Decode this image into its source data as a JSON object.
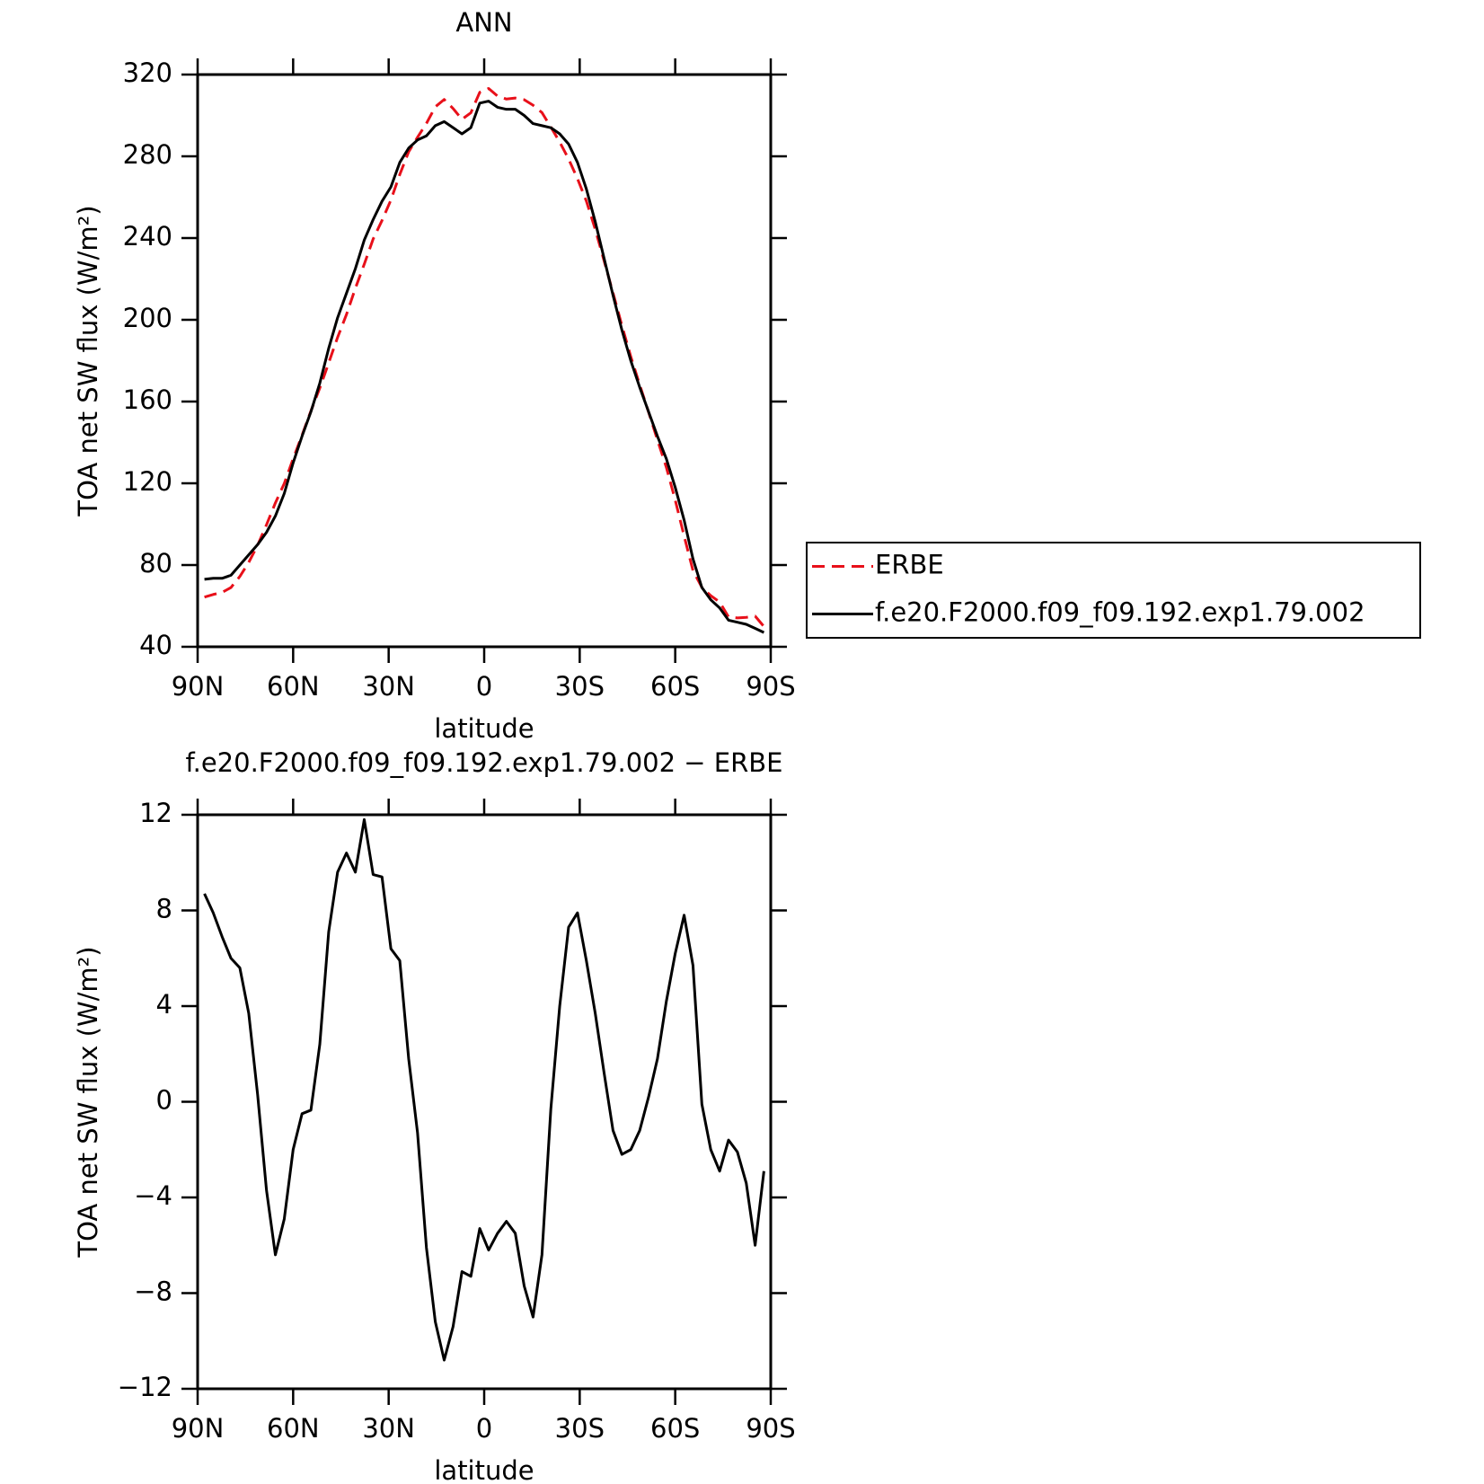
{
  "chart_data": [
    {
      "type": "line",
      "title": "ANN",
      "xlabel": "latitude",
      "ylabel": "TOA net SW flux (W/m²)",
      "x": [
        87.86,
        85.1,
        82.31,
        79.53,
        76.74,
        73.95,
        71.16,
        68.37,
        65.58,
        62.79,
        60.0,
        57.21,
        54.42,
        51.63,
        48.84,
        46.04,
        43.25,
        40.46,
        37.67,
        34.88,
        32.09,
        29.3,
        26.51,
        23.72,
        20.93,
        18.14,
        15.35,
        12.56,
        9.77,
        6.98,
        4.19,
        1.4,
        -1.4,
        -4.19,
        -6.98,
        -9.77,
        -12.56,
        -15.35,
        -18.14,
        -20.93,
        -23.72,
        -26.51,
        -29.3,
        -32.09,
        -34.88,
        -37.67,
        -40.46,
        -43.25,
        -46.04,
        -48.84,
        -51.63,
        -54.42,
        -57.21,
        -60.0,
        -62.79,
        -65.58,
        -68.37,
        -71.16,
        -73.95,
        -76.74,
        -79.53,
        -82.31,
        -85.1,
        -87.86
      ],
      "series": [
        {
          "name": "ERBE",
          "color": "#e8101a",
          "linestyle": "dashed",
          "values": [
            64.3,
            65.6,
            66.6,
            69.0,
            74.4,
            81.3,
            89.7,
            99.7,
            110.4,
            119.9,
            132.0,
            143.5,
            155.4,
            166.6,
            178.9,
            191.4,
            202.6,
            215.4,
            227.2,
            239.5,
            248.6,
            258.6,
            271.1,
            282.2,
            289.3,
            296.1,
            304.2,
            307.8,
            303.4,
            298.1,
            301.3,
            311.3,
            313.2,
            309.5,
            308.0,
            308.5,
            307.7,
            305.0,
            301.4,
            294.3,
            287.0,
            278.7,
            269.1,
            258.1,
            244.3,
            228.8,
            213.2,
            197.2,
            182.0,
            168.2,
            154.8,
            141.2,
            127.8,
            111.8,
            94.2,
            77.3,
            69.1,
            65.0,
            61.9,
            54.6,
            54.1,
            54.4,
            55.0,
            49.9
          ]
        },
        {
          "name": "f.e20.F2000.f09_f09.192.exp1.79.002",
          "color": "#000000",
          "linestyle": "solid",
          "values": [
            73,
            73.5,
            73.5,
            75,
            80,
            85,
            90,
            96,
            104,
            115,
            130,
            143,
            155,
            169,
            186,
            201,
            213,
            225,
            239,
            249,
            258,
            265,
            277,
            284,
            288,
            290,
            295,
            297,
            294,
            291,
            294,
            306,
            307,
            304,
            303,
            303,
            300,
            296,
            295,
            294,
            291,
            286,
            277,
            264,
            248,
            230,
            212,
            195,
            180,
            167,
            155,
            143,
            132,
            118,
            102,
            83,
            69,
            63,
            59,
            53,
            52,
            51,
            49,
            47
          ]
        }
      ],
      "xlim": [
        90,
        -90
      ],
      "xticks": [
        {
          "value": 90,
          "label": "90N"
        },
        {
          "value": 60,
          "label": "60N"
        },
        {
          "value": 30,
          "label": "30N"
        },
        0,
        {
          "value": -30,
          "label": "30S"
        },
        {
          "value": -60,
          "label": "60S"
        },
        {
          "value": -90,
          "label": "90S"
        }
      ],
      "ylim": [
        40,
        320
      ],
      "yticks": [
        40,
        80,
        120,
        160,
        200,
        240,
        280,
        320
      ],
      "legend": "right"
    },
    {
      "type": "line",
      "title": "f.e20.F2000.f09_f09.192.exp1.79.002 − ERBE",
      "xlabel": "latitude",
      "ylabel": "TOA net SW flux (W/m²)",
      "x": [
        87.86,
        85.1,
        82.31,
        79.53,
        76.74,
        73.95,
        71.16,
        68.37,
        65.58,
        62.79,
        60.0,
        57.21,
        54.42,
        51.63,
        48.84,
        46.04,
        43.25,
        40.46,
        37.67,
        34.88,
        32.09,
        29.3,
        26.51,
        23.72,
        20.93,
        18.14,
        15.35,
        12.56,
        9.77,
        6.98,
        4.19,
        1.4,
        -1.4,
        -4.19,
        -6.98,
        -9.77,
        -12.56,
        -15.35,
        -18.14,
        -20.93,
        -23.72,
        -26.51,
        -29.3,
        -32.09,
        -34.88,
        -37.67,
        -40.46,
        -43.25,
        -46.04,
        -48.84,
        -51.63,
        -54.42,
        -57.21,
        -60.0,
        -62.79,
        -65.58,
        -68.37,
        -71.16,
        -73.95,
        -76.74,
        -79.53,
        -82.31,
        -85.1,
        -87.86
      ],
      "color": "#000000",
      "values": [
        8.7,
        7.9,
        6.9,
        6.0,
        5.6,
        3.7,
        0.3,
        -3.7,
        -6.4,
        -4.9,
        -2.0,
        -0.5,
        -0.35,
        2.4,
        7.1,
        9.6,
        10.4,
        9.6,
        11.8,
        9.5,
        9.4,
        6.4,
        5.9,
        1.8,
        -1.3,
        -6.1,
        -9.2,
        -10.8,
        -9.4,
        -7.1,
        -7.3,
        -5.3,
        -6.2,
        -5.5,
        -5.0,
        -5.5,
        -7.7,
        -9.0,
        -6.4,
        -0.3,
        4.0,
        7.3,
        7.9,
        5.9,
        3.7,
        1.2,
        -1.2,
        -2.2,
        -2.0,
        -1.2,
        0.2,
        1.8,
        4.2,
        6.2,
        7.8,
        5.7,
        -0.1,
        -2.0,
        -2.9,
        -1.6,
        -2.1,
        -3.4,
        -6.0,
        -2.9
      ],
      "xlim": [
        90,
        -90
      ],
      "xticks": [
        {
          "value": 90,
          "label": "90N"
        },
        {
          "value": 60,
          "label": "60N"
        },
        {
          "value": 30,
          "label": "30N"
        },
        0,
        {
          "value": -30,
          "label": "30S"
        },
        {
          "value": -60,
          "label": "60S"
        },
        {
          "value": -90,
          "label": "90S"
        }
      ],
      "ylim": [
        -12,
        12
      ],
      "yticks": [
        {
          "value": -12,
          "label": "−12"
        },
        {
          "value": -8,
          "label": "−8"
        },
        {
          "value": -4,
          "label": "−4"
        },
        0,
        4,
        8,
        12
      ]
    }
  ]
}
